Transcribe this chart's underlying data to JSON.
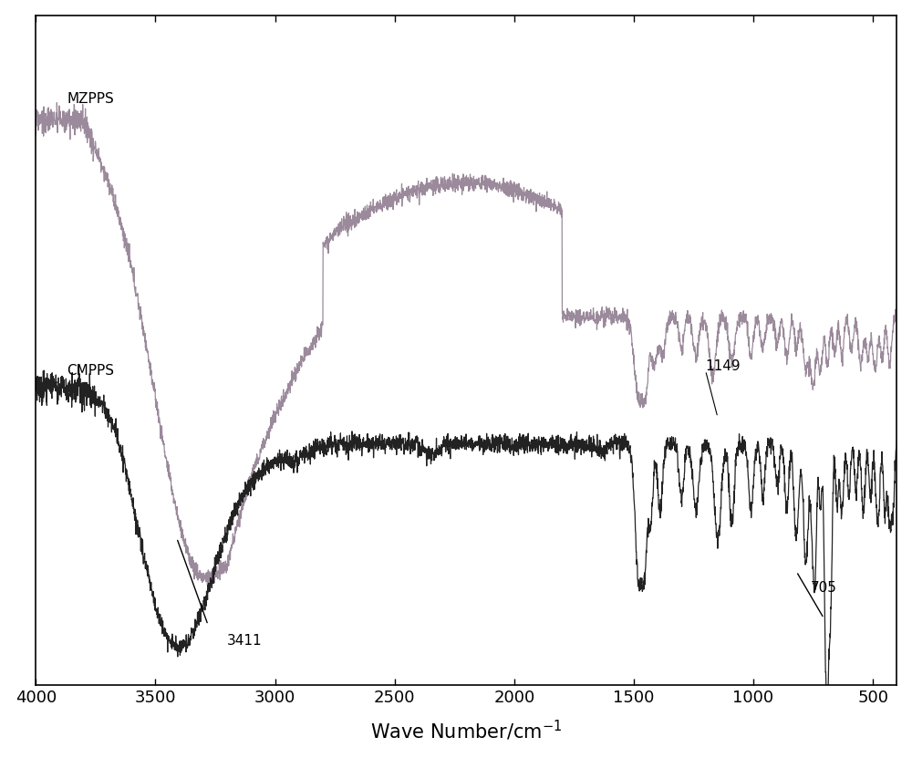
{
  "title": "",
  "xlabel": "Wave Number/cm$^{-1}$",
  "xlabel_fontsize": 15,
  "xlim": [
    4000,
    400
  ],
  "ylim": [
    0.0,
    1.0
  ],
  "figsize": [
    10.0,
    8.31
  ],
  "dpi": 100,
  "mzpps_color": "#9b8a9b",
  "cmpps_color": "#222222",
  "background_color": "#ffffff",
  "tick_label_fontsize": 13,
  "xtick_locs": [
    4000,
    3500,
    3000,
    2500,
    2000,
    1500,
    1000,
    500
  ]
}
